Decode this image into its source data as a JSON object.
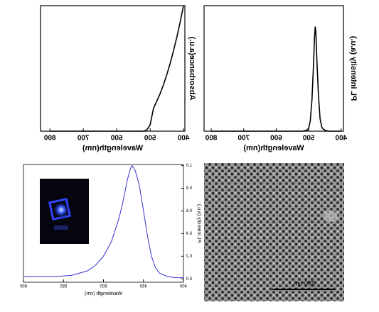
{
  "chart_data": [
    {
      "type": "line",
      "x_label": "Wavelength(nm)",
      "y_label": "Absorbance(a.u.)",
      "x": [
        800,
        700,
        600,
        550,
        520,
        510,
        500,
        490,
        480,
        470,
        460,
        450,
        440,
        430,
        420,
        410,
        400
      ],
      "values": [
        0,
        0,
        0,
        0,
        0,
        0.01,
        0.05,
        0.18,
        0.24,
        0.3,
        0.37,
        0.45,
        0.54,
        0.64,
        0.75,
        0.87,
        1.0
      ],
      "color": "#000000",
      "xlim": [
        828,
        396
      ],
      "ylim": [
        0,
        1
      ],
      "xticks": [
        800,
        700,
        600,
        500,
        400
      ]
    },
    {
      "type": "line",
      "x_label": "Wavelength(nm)",
      "y_label": "PL intensity (a.u.)",
      "x": [
        800,
        600,
        520,
        505,
        500,
        495,
        490,
        485,
        482,
        480,
        478,
        475,
        470,
        465,
        460,
        455,
        450,
        440,
        400
      ],
      "values": [
        0,
        0,
        0,
        0.01,
        0.03,
        0.1,
        0.3,
        0.65,
        0.9,
        1.0,
        0.95,
        0.7,
        0.35,
        0.12,
        0.04,
        0.02,
        0.01,
        0,
        0
      ],
      "color": "#000000",
      "xlim": [
        822,
        393
      ],
      "ylim": [
        0,
        1.2
      ],
      "xticks": [
        800,
        700,
        600,
        500,
        400
      ]
    },
    {
      "type": "line",
      "x_label": "Wavelength (nm)",
      "y_label": "PL intensity (a.u.)",
      "x": [
        600,
        580,
        560,
        540,
        520,
        510,
        500,
        490,
        480,
        475,
        470,
        466,
        464,
        460,
        455,
        450,
        445,
        440,
        435,
        430,
        420,
        410,
        400
      ],
      "values": [
        0.02,
        0.02,
        0.02,
        0.03,
        0.07,
        0.12,
        0.2,
        0.33,
        0.55,
        0.7,
        0.88,
        0.98,
        1.0,
        0.95,
        0.82,
        0.6,
        0.38,
        0.2,
        0.1,
        0.05,
        0.02,
        0.01,
        0.01
      ],
      "color": "#3333cc",
      "xlim": [
        600,
        400
      ],
      "ylim": [
        -0.03,
        1.01
      ],
      "xticks": [
        600,
        550,
        500,
        450,
        400
      ],
      "yticks": [
        {
          "value": 0,
          "label": "0.0"
        },
        0.2,
        0.4,
        0.6,
        0.8,
        {
          "value": 1,
          "label": "1.0"
        }
      ]
    }
  ],
  "sem_image": {
    "scale_bar": "200 nm"
  }
}
